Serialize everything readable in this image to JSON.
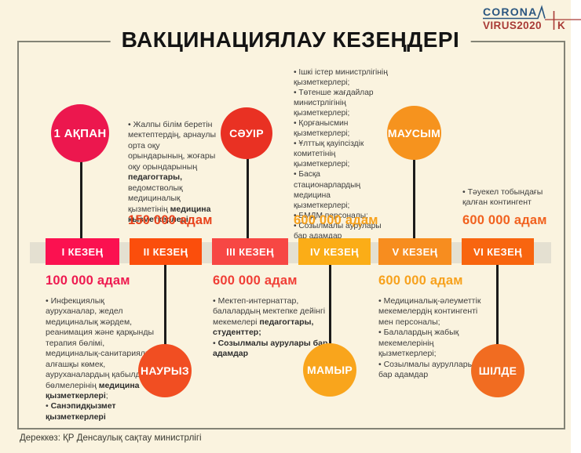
{
  "page": {
    "bg": "#FAF3DF",
    "title": "ВАКЦИНАЦИЯЛАУ КЕЗЕҢДЕРІ",
    "source": "Дереккөз: ҚР Денсаулық сақтау министрлігі"
  },
  "logo": {
    "line1": "CORONA",
    "line2": "VIRUS2020",
    "suffix": "K",
    "blue": "#2A5680",
    "red": "#A93B36"
  },
  "stages": [
    {
      "label": "І КЕЗЕҢ",
      "color": "#FB1150"
    },
    {
      "label": "ІІ КЕЗЕҢ",
      "color": "#FB4E0C"
    },
    {
      "label": "ІІІ КЕЗЕҢ",
      "color": "#F74744"
    },
    {
      "label": "IV КЕЗЕҢ",
      "color": "#FBAD17"
    },
    {
      "label": "V КЕЗЕҢ",
      "color": "#F78D1F"
    },
    {
      "label": "VI КЕЗЕҢ",
      "color": "#F8650F"
    }
  ],
  "months": [
    {
      "label": "1 АҚПАН",
      "color": "#EC174E"
    },
    {
      "label": "НАУРЫЗ",
      "color": "#F14E22"
    },
    {
      "label": "СӘУІР",
      "color": "#E93123"
    },
    {
      "label": "МАМЫР",
      "color": "#F9A51C"
    },
    {
      "label": "МАУСЫМ",
      "color": "#F6931E"
    },
    {
      "label": "ШІЛДЕ",
      "color": "#F16C21"
    }
  ],
  "notes": {
    "top_left": {
      "bullets": [
        [
          {
            "t": "Жалпы білім беретін мектептердің, арнаулы орта оқу орындарының, жоғары оқу орындарының "
          },
          {
            "t": "педагогтары,",
            "b": true
          },
          {
            "t": " ведомстволық медициналық қызметінің "
          },
          {
            "t": "медицина қызметкерлері",
            "b": true
          }
        ]
      ],
      "count": "150 000 адам",
      "count_color": "#E8431C"
    },
    "top_mid": {
      "bullets": [
        [
          {
            "t": "Ішкі істер министрлігінің қызметкерлері;"
          }
        ],
        [
          {
            "t": "Төтенше жағдайлар министрлігінің қызметкерлері;"
          }
        ],
        [
          {
            "t": "Қорғанысмин қызметкерлері;"
          }
        ],
        [
          {
            "t": "Ұлттық қауіпсіздік комитетінің қызметкерлері;"
          }
        ],
        [
          {
            "t": "Басқа стационарлардың медицина қызметкерлері;"
          }
        ],
        [
          {
            "t": "БМДМ персоналы;"
          }
        ],
        [
          {
            "t": "Созылмалы аурулары бар адамдар"
          }
        ]
      ],
      "count": "600 000 адам",
      "count_color": "#F7A11C"
    },
    "top_right": {
      "bullets": [
        [
          {
            "t": "Тәуекел тобындағы қалған контингент"
          }
        ]
      ],
      "count": "600 000 адам",
      "count_color": "#F1611E"
    },
    "bottom_left": {
      "count": "100 000 адам",
      "count_color": "#EE1A50",
      "bullets": [
        [
          {
            "t": "Инфекциялық ауруханалар, жедел медициналық жәрдем, реанимация және қарқынды терапия бөлімі, медициналық-санитариялық алғашқы көмек, ауруханалардың қабылдау бөлмелерінің "
          },
          {
            "t": "медицина қызметкерлері",
            "b": true
          },
          {
            "t": ";"
          }
        ],
        [
          {
            "t": "Санэпидқызмет қызметкерлері",
            "b": true
          }
        ]
      ]
    },
    "bottom_mid": {
      "count": "600 000 адам",
      "count_color": "#F03E36",
      "bullets": [
        [
          {
            "t": "Мектеп-интернаттар, балалардың мектепке дейінгі мекемелері "
          },
          {
            "t": "педагогтары, студенттер;",
            "b": true
          }
        ],
        [
          {
            "t": "Созылмалы аурулары бар адамдар",
            "b": true
          }
        ]
      ]
    },
    "bottom_right": {
      "count": "600 000 адам",
      "count_color": "#F7A11C",
      "bullets": [
        [
          {
            "t": "Медициналық-әлеуметтік мекемелердің контингенті мен персоналы;"
          }
        ],
        [
          {
            "t": "Балалардың жабық мекемелерінің қызметкерлері;"
          }
        ],
        [
          {
            "t": "Созылмалы ауруллары бар адамдар"
          }
        ]
      ]
    }
  }
}
